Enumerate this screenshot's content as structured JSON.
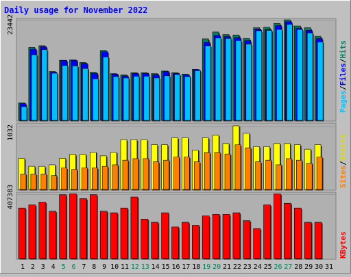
{
  "title": "Daily usage for November 2022",
  "colors": {
    "hits": "#00805c",
    "files": "#0000ff",
    "pages": "#00c0ff",
    "visits": "#ffff00",
    "sites": "#ff8000",
    "kbytes": "#ff0000",
    "title": "#0000ff",
    "weekend": "#00805c"
  },
  "chart_data": [
    {
      "type": "bar",
      "panel": "hits",
      "ymax_label": "23442",
      "ymax": 23442,
      "legend": [
        "Pages",
        "Files",
        "Hits"
      ],
      "categories": [
        "1",
        "2",
        "3",
        "4",
        "5",
        "6",
        "7",
        "8",
        "9",
        "10",
        "11",
        "12",
        "13",
        "14",
        "15",
        "16",
        "17",
        "18",
        "19",
        "20",
        "21",
        "22",
        "23",
        "24",
        "25",
        "26",
        "27",
        "28",
        "29",
        "30",
        "31"
      ],
      "weekend_days": [
        "5",
        "6",
        "12",
        "13",
        "19",
        "20",
        "26",
        "27"
      ],
      "series": [
        {
          "name": "Hits",
          "values": [
            4100,
            17000,
            17400,
            11400,
            14000,
            14100,
            13500,
            11200,
            16300,
            10900,
            10600,
            11100,
            11100,
            10900,
            11500,
            11100,
            10800,
            11900,
            19000,
            20600,
            20000,
            19900,
            19100,
            21600,
            21700,
            22600,
            23442,
            22000,
            21600,
            19600,
            0
          ]
        },
        {
          "name": "Files",
          "values": [
            3900,
            16600,
            17200,
            11200,
            14000,
            14000,
            13300,
            11000,
            16000,
            10800,
            10400,
            11000,
            11000,
            10700,
            11400,
            11000,
            10600,
            11800,
            18200,
            19800,
            19600,
            19300,
            18600,
            21300,
            21200,
            22100,
            23000,
            21500,
            21000,
            19100,
            0
          ]
        },
        {
          "name": "Pages",
          "values": [
            3200,
            15300,
            16500,
            11000,
            12800,
            12700,
            12100,
            9700,
            14800,
            10200,
            9900,
            10300,
            10300,
            9900,
            10400,
            10700,
            10200,
            11600,
            17400,
            19200,
            19100,
            18600,
            17800,
            20900,
            21000,
            21200,
            22400,
            21200,
            20400,
            18300,
            0
          ]
        }
      ]
    },
    {
      "type": "bar",
      "panel": "visits",
      "ymax_label": "1032",
      "ymax": 1032,
      "legend": [
        "Sites",
        "Visits"
      ],
      "categories": [
        "1",
        "2",
        "3",
        "4",
        "5",
        "6",
        "7",
        "8",
        "9",
        "10",
        "11",
        "12",
        "13",
        "14",
        "15",
        "16",
        "17",
        "18",
        "19",
        "20",
        "21",
        "22",
        "23",
        "24",
        "25",
        "26",
        "27",
        "28",
        "29",
        "30",
        "31"
      ],
      "series": [
        {
          "name": "Visits",
          "values": [
            502,
            376,
            376,
            400,
            504,
            568,
            568,
            605,
            545,
            605,
            808,
            808,
            808,
            725,
            725,
            839,
            839,
            640,
            839,
            879,
            745,
            1032,
            911,
            695,
            695,
            745,
            745,
            725,
            653,
            725,
            0
          ]
        },
        {
          "name": "Sites",
          "values": [
            250,
            250,
            250,
            225,
            350,
            325,
            350,
            350,
            375,
            400,
            475,
            500,
            500,
            450,
            475,
            525,
            525,
            450,
            600,
            600,
            575,
            725,
            675,
            450,
            475,
            400,
            500,
            475,
            425,
            525,
            0
          ]
        }
      ]
    },
    {
      "type": "bar",
      "panel": "kbytes",
      "ymax_label": "407383",
      "ymax": 407383,
      "legend": [
        "KBytes"
      ],
      "categories": [
        "1",
        "2",
        "3",
        "4",
        "5",
        "6",
        "7",
        "8",
        "9",
        "10",
        "11",
        "12",
        "13",
        "14",
        "15",
        "16",
        "17",
        "18",
        "19",
        "20",
        "21",
        "22",
        "23",
        "24",
        "25",
        "26",
        "27",
        "28",
        "29",
        "30",
        "31"
      ],
      "series": [
        {
          "name": "KBytes",
          "values": [
            320000,
            340000,
            357000,
            300000,
            405000,
            410000,
            380000,
            405000,
            300000,
            290000,
            320000,
            390000,
            250000,
            230000,
            290000,
            200000,
            230000,
            210000,
            270000,
            280000,
            280000,
            290000,
            240000,
            190000,
            340000,
            410000,
            350000,
            320000,
            230000,
            230000,
            0
          ]
        }
      ]
    }
  ]
}
